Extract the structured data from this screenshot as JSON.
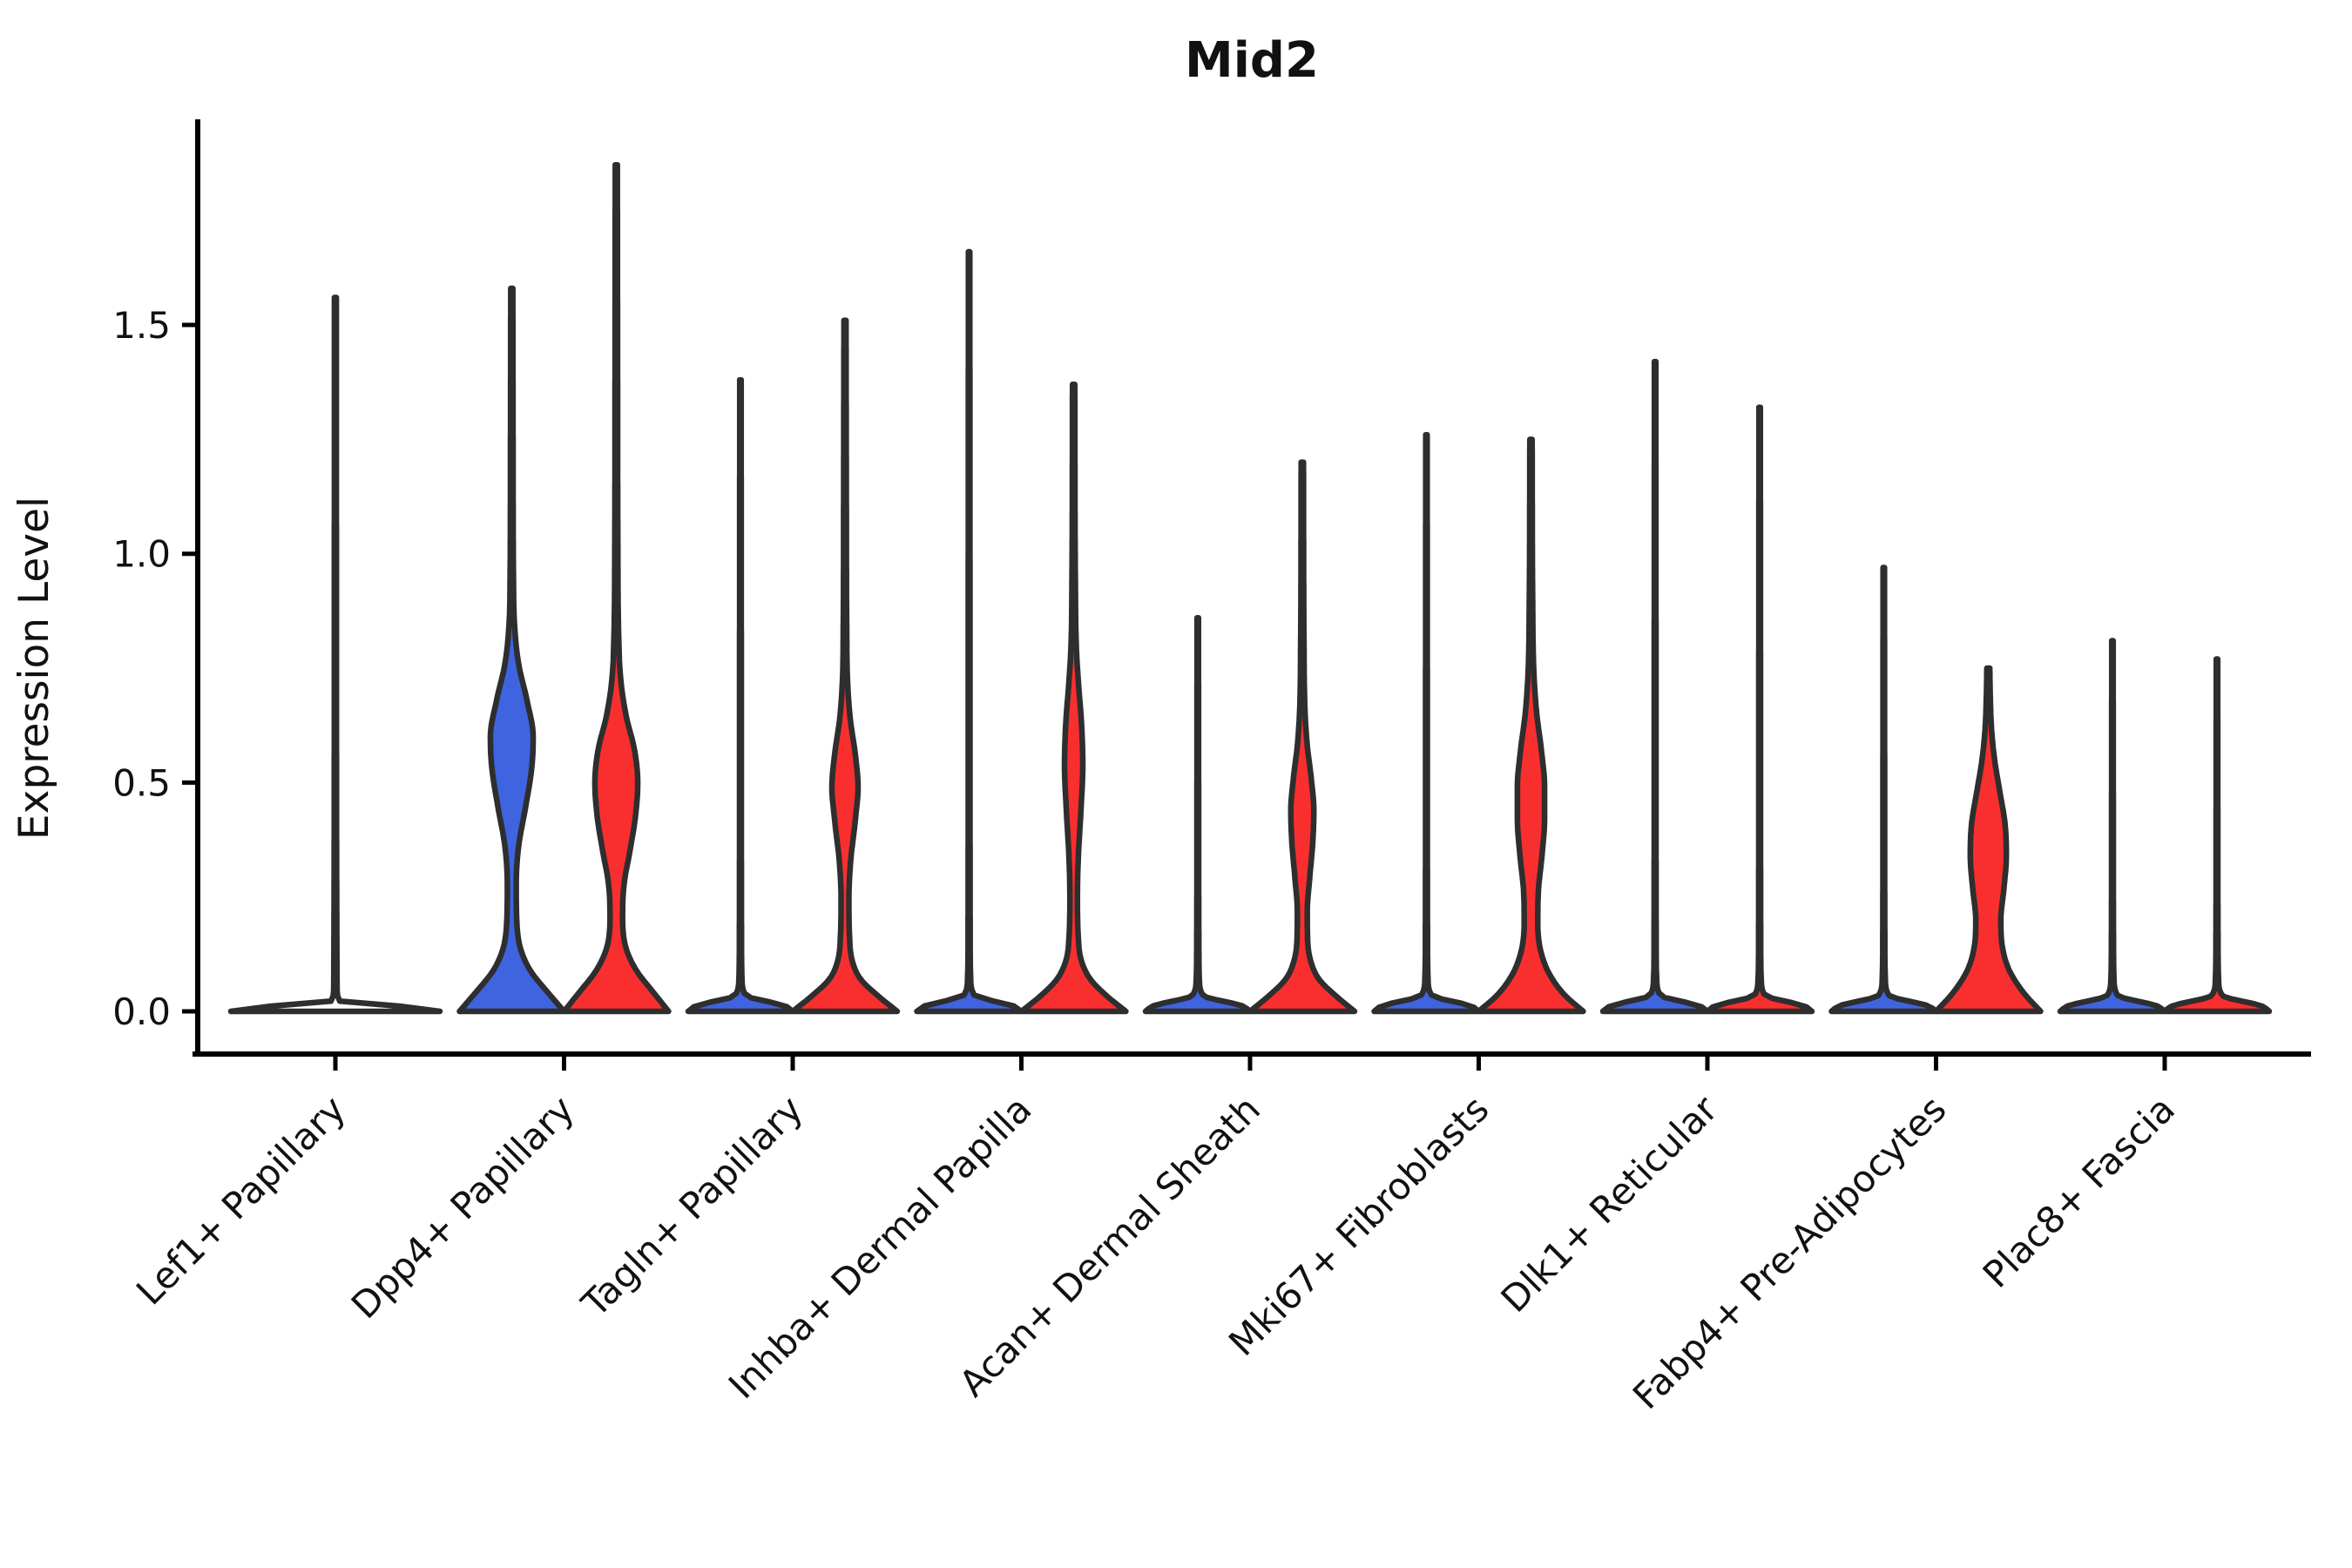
{
  "chart_data": {
    "type": "violin",
    "title": "Mid2",
    "ylabel": "Expression Level",
    "xlabel": "",
    "yticks": [
      "0.0",
      "0.5",
      "1.0",
      "1.5"
    ],
    "ytick_values": [
      0.0,
      0.5,
      1.0,
      1.5
    ],
    "ylim": [
      -0.09,
      1.95
    ],
    "grid": "off",
    "legend": "none",
    "x_tick_rotation": 45,
    "colors": {
      "left_group_fill": "#3E64E0",
      "right_group_fill": "#F92F2F",
      "outline": "#2E2E2E",
      "axis": "#000000",
      "text": "#111111"
    },
    "categories": [
      "Lef1+ Papillary",
      "Dpp4+ Papillary",
      "Tagln+ Papillary",
      "Inhba+ Dermal Papilla",
      "Acan+ Dermal Sheath",
      "Mki67+ Fibroblasts",
      "Dlk1+ Reticular",
      "Fabp4+ Pre-Adipocytes",
      "Plac8+ Fascia"
    ],
    "violins": [
      {
        "category": "Lef1+ Papillary",
        "position": "center",
        "fill": "none",
        "max": 1.56,
        "profile": [
          [
            0,
            1
          ],
          [
            0.007,
            0.9
          ],
          [
            0.02,
            0.05
          ],
          [
            0.05,
            0.016
          ],
          [
            0.8,
            0.01
          ],
          [
            1.56,
            0.009
          ]
        ]
      },
      {
        "category": "Dpp4+ Papillary",
        "position": "left",
        "fill": "#3E64E0",
        "max": 1.58,
        "profile": [
          [
            0,
            1
          ],
          [
            0.04,
            0.7
          ],
          [
            0.09,
            0.35
          ],
          [
            0.14,
            0.16
          ],
          [
            0.2,
            0.095
          ],
          [
            0.28,
            0.085
          ],
          [
            0.36,
            0.13
          ],
          [
            0.45,
            0.27
          ],
          [
            0.53,
            0.38
          ],
          [
            0.6,
            0.41
          ],
          [
            0.68,
            0.29
          ],
          [
            0.76,
            0.13
          ],
          [
            0.84,
            0.055
          ],
          [
            0.95,
            0.032
          ],
          [
            1.2,
            0.025
          ],
          [
            1.58,
            0.02
          ]
        ]
      },
      {
        "category": "Dpp4+ Papillary",
        "position": "right",
        "fill": "#F92F2F",
        "max": 1.85,
        "profile": [
          [
            0,
            1
          ],
          [
            0.04,
            0.72
          ],
          [
            0.09,
            0.38
          ],
          [
            0.14,
            0.18
          ],
          [
            0.21,
            0.12
          ],
          [
            0.28,
            0.15
          ],
          [
            0.35,
            0.26
          ],
          [
            0.43,
            0.37
          ],
          [
            0.5,
            0.41
          ],
          [
            0.57,
            0.35
          ],
          [
            0.65,
            0.18
          ],
          [
            0.73,
            0.08
          ],
          [
            0.82,
            0.045
          ],
          [
            1.0,
            0.03
          ],
          [
            1.4,
            0.024
          ],
          [
            1.85,
            0.02
          ]
        ]
      },
      {
        "category": "Tagln+ Papillary",
        "position": "left",
        "fill": "#3E64E0",
        "max": 1.38,
        "profile": [
          [
            0,
            1
          ],
          [
            0.012,
            0.85
          ],
          [
            0.035,
            0.1
          ],
          [
            0.07,
            0.03
          ],
          [
            0.15,
            0.02
          ],
          [
            0.76,
            0.016
          ],
          [
            1.38,
            0.013
          ]
        ]
      },
      {
        "category": "Tagln+ Papillary",
        "position": "right",
        "fill": "#F92F2F",
        "max": 1.51,
        "profile": [
          [
            0,
            1
          ],
          [
            0.035,
            0.62
          ],
          [
            0.07,
            0.3
          ],
          [
            0.11,
            0.14
          ],
          [
            0.17,
            0.085
          ],
          [
            0.25,
            0.075
          ],
          [
            0.33,
            0.11
          ],
          [
            0.42,
            0.2
          ],
          [
            0.49,
            0.25
          ],
          [
            0.56,
            0.2
          ],
          [
            0.64,
            0.1
          ],
          [
            0.72,
            0.05
          ],
          [
            0.85,
            0.032
          ],
          [
            1.1,
            0.026
          ],
          [
            1.51,
            0.02
          ]
        ]
      },
      {
        "category": "Inhba+ Dermal Papilla",
        "position": "left",
        "fill": "#3E64E0",
        "max": 1.66,
        "profile": [
          [
            0,
            1
          ],
          [
            0.012,
            0.85
          ],
          [
            0.035,
            0.1
          ],
          [
            0.07,
            0.03
          ],
          [
            0.15,
            0.02
          ],
          [
            0.9,
            0.016
          ],
          [
            1.66,
            0.013
          ]
        ]
      },
      {
        "category": "Inhba+ Dermal Papilla",
        "position": "right",
        "fill": "#F92F2F",
        "max": 1.37,
        "profile": [
          [
            0,
            1
          ],
          [
            0.035,
            0.62
          ],
          [
            0.07,
            0.32
          ],
          [
            0.11,
            0.15
          ],
          [
            0.17,
            0.085
          ],
          [
            0.25,
            0.072
          ],
          [
            0.34,
            0.09
          ],
          [
            0.44,
            0.14
          ],
          [
            0.54,
            0.175
          ],
          [
            0.63,
            0.15
          ],
          [
            0.72,
            0.09
          ],
          [
            0.8,
            0.05
          ],
          [
            0.95,
            0.032
          ],
          [
            1.37,
            0.022
          ]
        ]
      },
      {
        "category": "Acan+ Dermal Sheath",
        "position": "left",
        "fill": "#3E64E0",
        "max": 0.86,
        "profile": [
          [
            0,
            1
          ],
          [
            0.012,
            0.85
          ],
          [
            0.035,
            0.1
          ],
          [
            0.07,
            0.03
          ],
          [
            0.15,
            0.02
          ],
          [
            0.47,
            0.016
          ],
          [
            0.86,
            0.013
          ]
        ]
      },
      {
        "category": "Acan+ Dermal Sheath",
        "position": "right",
        "fill": "#F92F2F",
        "max": 1.2,
        "profile": [
          [
            0,
            1
          ],
          [
            0.035,
            0.63
          ],
          [
            0.07,
            0.32
          ],
          [
            0.11,
            0.16
          ],
          [
            0.16,
            0.1
          ],
          [
            0.22,
            0.095
          ],
          [
            0.29,
            0.14
          ],
          [
            0.37,
            0.2
          ],
          [
            0.44,
            0.22
          ],
          [
            0.51,
            0.17
          ],
          [
            0.58,
            0.095
          ],
          [
            0.66,
            0.05
          ],
          [
            0.8,
            0.032
          ],
          [
            1.2,
            0.022
          ]
        ]
      },
      {
        "category": "Mki67+ Fibroblasts",
        "position": "left",
        "fill": "#3E64E0",
        "max": 1.26,
        "profile": [
          [
            0,
            1
          ],
          [
            0.012,
            0.85
          ],
          [
            0.035,
            0.1
          ],
          [
            0.07,
            0.03
          ],
          [
            0.15,
            0.02
          ],
          [
            0.69,
            0.016
          ],
          [
            1.26,
            0.013
          ]
        ]
      },
      {
        "category": "Mki67+ Fibroblasts",
        "position": "right",
        "fill": "#F92F2F",
        "max": 1.25,
        "profile": [
          [
            0,
            1
          ],
          [
            0.035,
            0.65
          ],
          [
            0.08,
            0.36
          ],
          [
            0.13,
            0.19
          ],
          [
            0.19,
            0.13
          ],
          [
            0.26,
            0.14
          ],
          [
            0.34,
            0.21
          ],
          [
            0.42,
            0.26
          ],
          [
            0.49,
            0.26
          ],
          [
            0.57,
            0.2
          ],
          [
            0.65,
            0.11
          ],
          [
            0.74,
            0.055
          ],
          [
            0.9,
            0.032
          ],
          [
            1.25,
            0.022
          ]
        ]
      },
      {
        "category": "Dlk1+ Reticular",
        "position": "left",
        "fill": "#3E64E0",
        "max": 1.42,
        "profile": [
          [
            0,
            1
          ],
          [
            0.012,
            0.85
          ],
          [
            0.035,
            0.1
          ],
          [
            0.07,
            0.03
          ],
          [
            0.15,
            0.02
          ],
          [
            0.78,
            0.016
          ],
          [
            1.42,
            0.013
          ]
        ]
      },
      {
        "category": "Dlk1+ Reticular",
        "position": "right",
        "fill": "#F92F2F",
        "max": 1.32,
        "profile": [
          [
            0,
            1
          ],
          [
            0.012,
            0.85
          ],
          [
            0.035,
            0.1
          ],
          [
            0.07,
            0.03
          ],
          [
            0.15,
            0.02
          ],
          [
            0.72,
            0.016
          ],
          [
            1.32,
            0.013
          ]
        ]
      },
      {
        "category": "Fabp4+ Pre-Adipocytes",
        "position": "left",
        "fill": "#3E64E0",
        "max": 0.97,
        "profile": [
          [
            0,
            1
          ],
          [
            0.012,
            0.85
          ],
          [
            0.035,
            0.1
          ],
          [
            0.07,
            0.03
          ],
          [
            0.15,
            0.02
          ],
          [
            0.53,
            0.016
          ],
          [
            0.97,
            0.013
          ]
        ]
      },
      {
        "category": "Fabp4+ Pre-Adipocytes",
        "position": "right",
        "fill": "#F92F2F",
        "max": 0.75,
        "profile": [
          [
            0,
            1
          ],
          [
            0.04,
            0.68
          ],
          [
            0.09,
            0.4
          ],
          [
            0.14,
            0.27
          ],
          [
            0.2,
            0.24
          ],
          [
            0.27,
            0.3
          ],
          [
            0.34,
            0.345
          ],
          [
            0.41,
            0.32
          ],
          [
            0.48,
            0.22
          ],
          [
            0.55,
            0.12
          ],
          [
            0.62,
            0.06
          ],
          [
            0.7,
            0.035
          ],
          [
            0.75,
            0.028
          ]
        ]
      },
      {
        "category": "Plac8+ Fascia",
        "position": "left",
        "fill": "#3E64E0",
        "max": 0.81,
        "profile": [
          [
            0,
            1
          ],
          [
            0.012,
            0.85
          ],
          [
            0.035,
            0.1
          ],
          [
            0.07,
            0.03
          ],
          [
            0.15,
            0.02
          ],
          [
            0.45,
            0.016
          ],
          [
            0.81,
            0.013
          ]
        ]
      },
      {
        "category": "Plac8+ Fascia",
        "position": "right",
        "fill": "#F92F2F",
        "max": 0.77,
        "profile": [
          [
            0,
            1
          ],
          [
            0.012,
            0.85
          ],
          [
            0.035,
            0.1
          ],
          [
            0.07,
            0.03
          ],
          [
            0.15,
            0.02
          ],
          [
            0.42,
            0.016
          ],
          [
            0.77,
            0.013
          ]
        ]
      }
    ]
  }
}
